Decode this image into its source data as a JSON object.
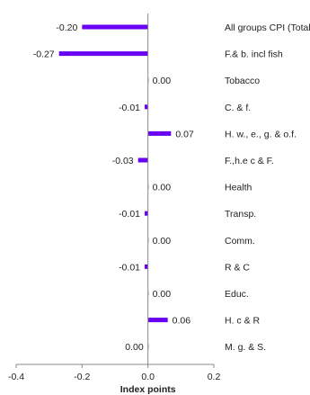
{
  "chart_data": {
    "type": "bar",
    "orientation": "horizontal",
    "categories": [
      "All groups CPI (Total)",
      "F.& b. incl fish",
      "Tobacco",
      "C. & f.",
      "H. w., e., g. & o.f.",
      "F.,h.e c & F.",
      "Health",
      "Transp.",
      "Comm.",
      "R & C",
      "Educ.",
      "H. c & R",
      "M. g. & S."
    ],
    "values": [
      -0.2,
      -0.27,
      0.0,
      -0.01,
      0.07,
      -0.03,
      0.0,
      -0.01,
      0.0,
      -0.01,
      0.0,
      0.06,
      0.0
    ],
    "data_labels": [
      "-0.20",
      "-0.27",
      "0.00",
      "-0.01",
      "0.07",
      "-0.03",
      "0.00",
      "-0.01",
      "0.00",
      "-0.01",
      "0.00",
      "0.06",
      "0.00"
    ],
    "xlabel": "Index points",
    "xlim": [
      -0.4,
      0.2
    ],
    "xticks": [
      -0.4,
      -0.2,
      0.0,
      0.2
    ],
    "xtick_labels": [
      "-0.4",
      "-0.2",
      "0.0",
      "0.2"
    ],
    "grid": false,
    "bar_color": "#6a00f4"
  }
}
